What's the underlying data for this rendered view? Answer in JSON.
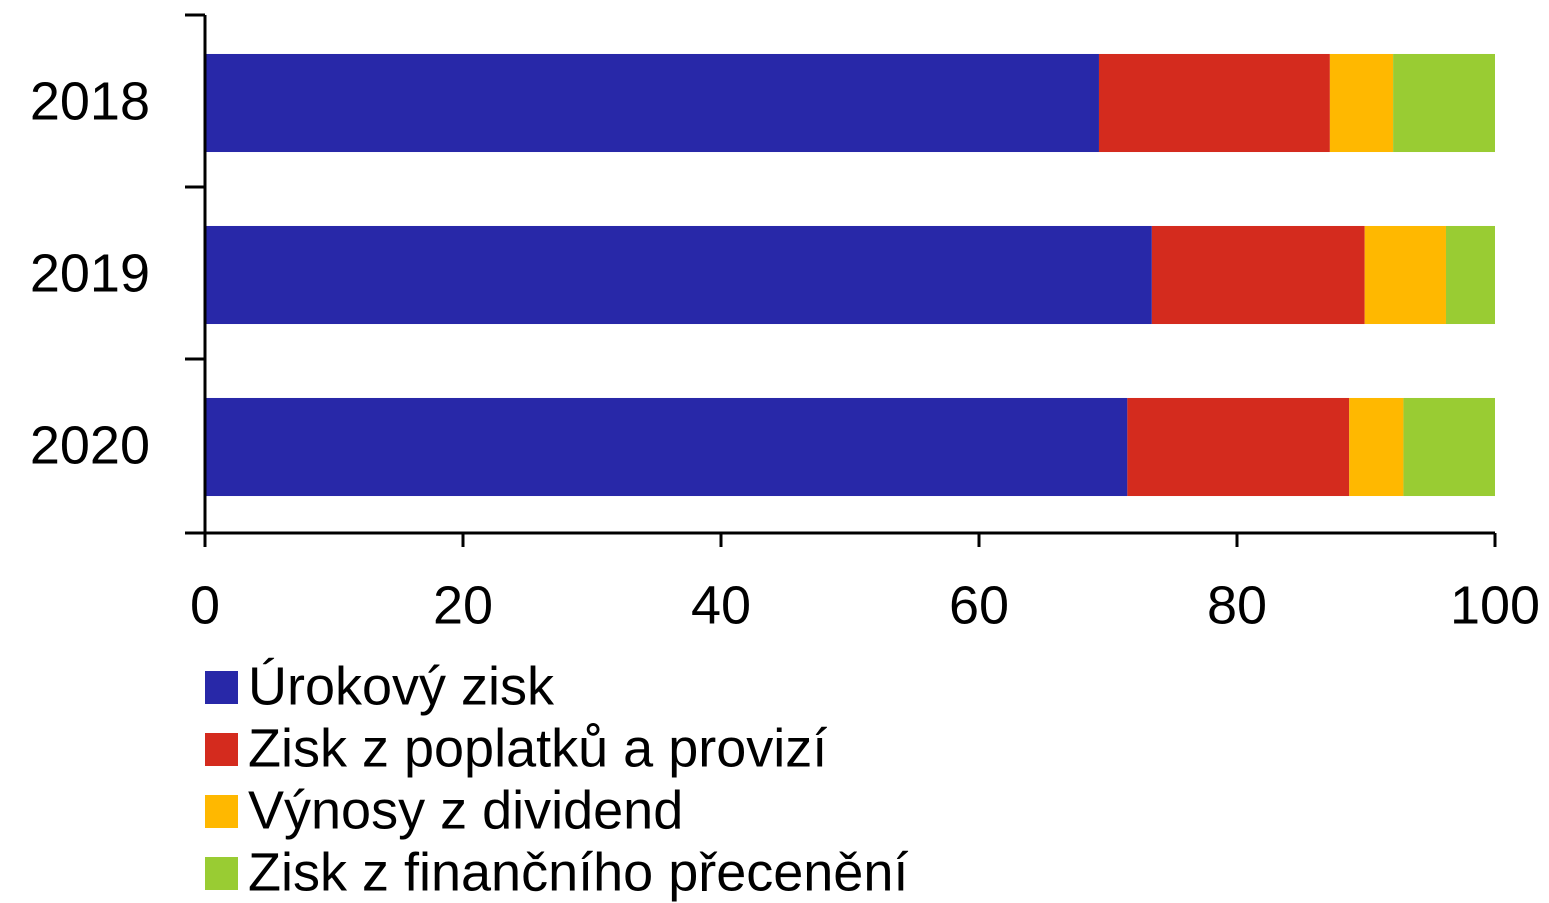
{
  "chart_data": {
    "type": "stacked-bar-horizontal",
    "categories": [
      "2018",
      "2019",
      "2020"
    ],
    "series": [
      {
        "name": "Úrokový zisk",
        "color": "#2828a8",
        "values": [
          69.3,
          73.4,
          71.5
        ]
      },
      {
        "name": "Zisk z poplatků a provizí",
        "color": "#d42b1e",
        "values": [
          17.9,
          16.5,
          17.2
        ]
      },
      {
        "name": "Výnosy z dividend",
        "color": "#ffb800",
        "values": [
          4.9,
          6.3,
          4.2
        ]
      },
      {
        "name": "Zisk z finančního přecenění",
        "color": "#99cc33",
        "values": [
          7.9,
          3.8,
          7.1
        ]
      }
    ],
    "xlim": [
      0,
      100
    ],
    "xticks": [
      0,
      20,
      40,
      60,
      80,
      100
    ],
    "legend": "bottom-left"
  }
}
